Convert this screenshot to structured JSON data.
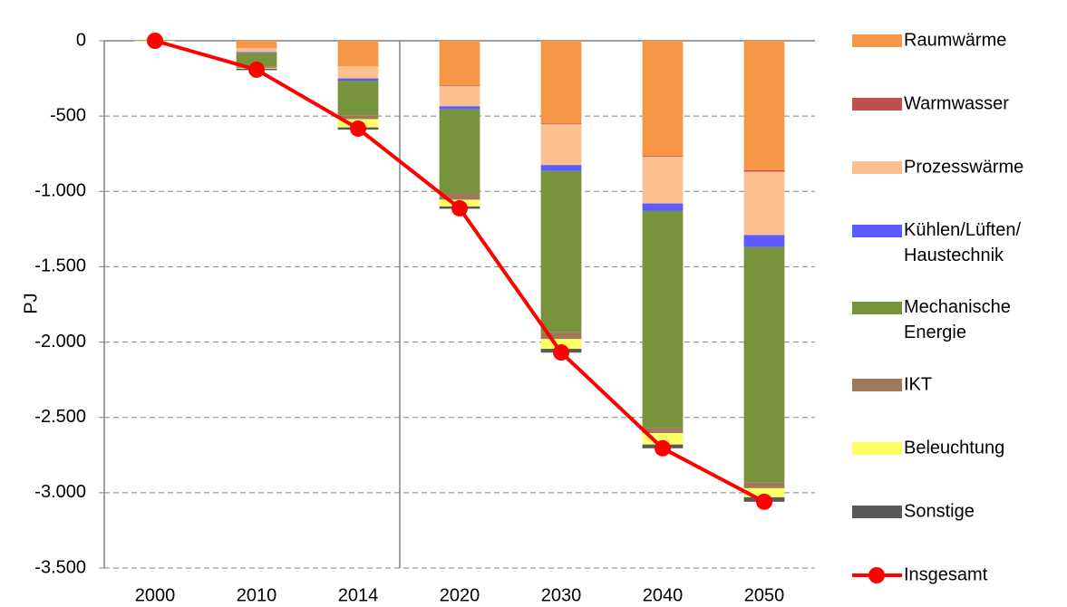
{
  "chart_data": {
    "type": "bar",
    "stacked": true,
    "y_label": "PJ",
    "categories": [
      "2000",
      "2010",
      "2014",
      "2020",
      "2030",
      "2040",
      "2050"
    ],
    "series": [
      {
        "name": "Raumwärme",
        "color": "#f79646",
        "values": [
          0,
          -50,
          -170,
          -295,
          -550,
          -765,
          -860
        ]
      },
      {
        "name": "Warmwasser",
        "color": "#c0504d",
        "values": [
          0,
          0,
          0,
          -5,
          -5,
          -5,
          -10
        ]
      },
      {
        "name": "Prozesswärme",
        "color": "#fac090",
        "values": [
          0,
          -25,
          -80,
          -135,
          -270,
          -310,
          -420
        ]
      },
      {
        "name": "Kühlen/Lüften/\nHaustechnik",
        "color": "#5b5bff",
        "values": [
          0,
          -5,
          -15,
          -20,
          -40,
          -50,
          -80
        ]
      },
      {
        "name": "Mechanische\nEnergie",
        "color": "#77933c",
        "values": [
          0,
          -90,
          -230,
          -555,
          -1070,
          -1440,
          -1560
        ]
      },
      {
        "name": "IKT",
        "color": "#a0785a",
        "values": [
          0,
          -10,
          -25,
          -45,
          -45,
          -35,
          -40
        ]
      },
      {
        "name": "Beleuchtung",
        "color": "#ffff66",
        "values": [
          -5,
          -5,
          -55,
          -45,
          -65,
          -75,
          -60
        ]
      },
      {
        "name": "Sonstige",
        "color": "#595959",
        "values": [
          0,
          -10,
          -15,
          -15,
          -25,
          -25,
          -30
        ]
      },
      {
        "name": "Insgesamt",
        "color": "#ff0000",
        "type": "line",
        "values": [
          0,
          -192,
          -583,
          -1112,
          -2069,
          -2705,
          -3060
        ]
      }
    ],
    "ylim": [
      -3500,
      0
    ],
    "yticks": [
      0,
      -500,
      {
        "value": -1000,
        "label": "-1.000"
      },
      {
        "value": -1500,
        "label": "-1.500"
      },
      {
        "value": -2000,
        "label": "-2.000"
      },
      {
        "value": -2500,
        "label": "-2.500"
      },
      {
        "value": -3000,
        "label": "-3.000"
      },
      {
        "value": -3500,
        "label": "-3.500"
      }
    ],
    "grid": true,
    "legend": "right"
  }
}
